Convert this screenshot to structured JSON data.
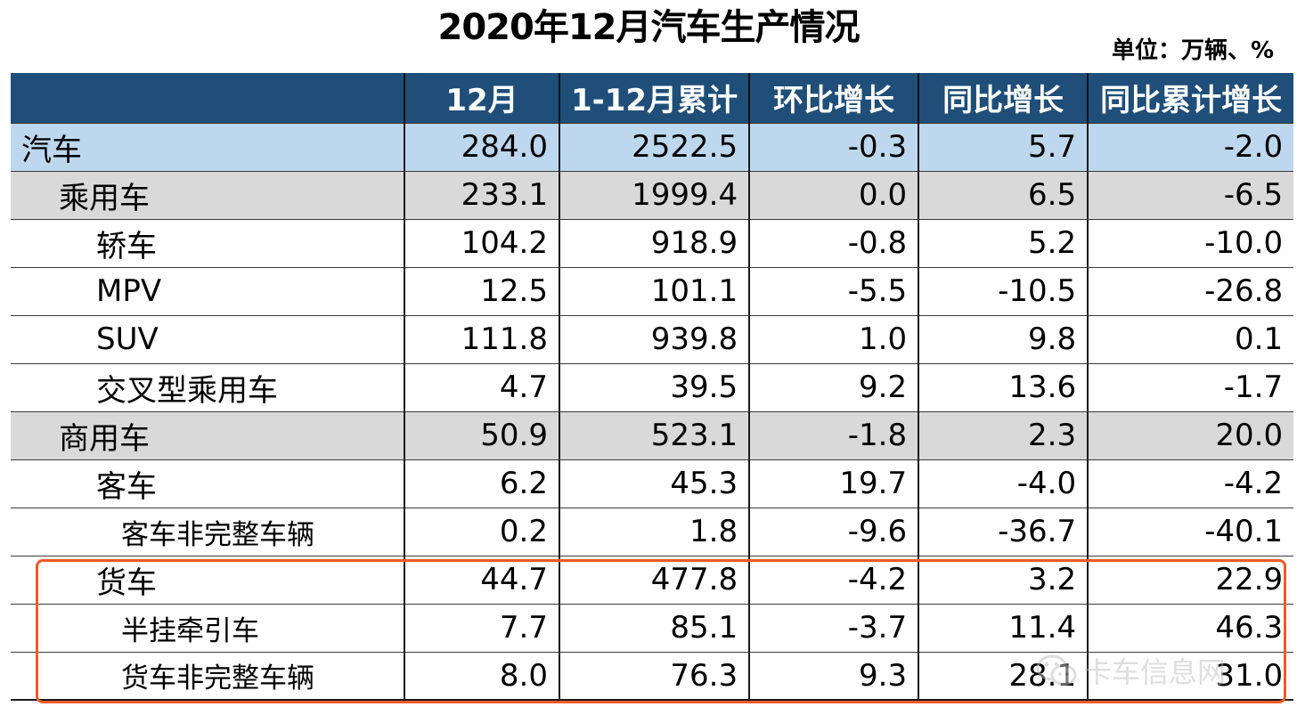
{
  "title": "2020年12月汽车生产情况",
  "unit_label": "单位：万辆、%",
  "watermark": {
    "text": "卡车信息网",
    "icon": "wechat-icon"
  },
  "colors": {
    "header_bg": "#1f4e79",
    "total_row_bg": "#bdd7ee",
    "subtotal_row_bg": "#d9d9d9",
    "highlight_border": "#ee5a29"
  },
  "chart_data": {
    "type": "table",
    "columns": [
      "",
      "12月",
      "1-12月累计",
      "环比增长",
      "同比增长",
      "同比累计增长"
    ],
    "rows": [
      {
        "label": "汽车",
        "level": 0,
        "values": [
          "284.0",
          "2522.5",
          "-0.3",
          "5.7",
          "-2.0"
        ]
      },
      {
        "label": "乘用车",
        "level": 1,
        "values": [
          "233.1",
          "1999.4",
          "0.0",
          "6.5",
          "-6.5"
        ]
      },
      {
        "label": "轿车",
        "level": 2,
        "values": [
          "104.2",
          "918.9",
          "-0.8",
          "5.2",
          "-10.0"
        ]
      },
      {
        "label": "MPV",
        "level": 2,
        "values": [
          "12.5",
          "101.1",
          "-5.5",
          "-10.5",
          "-26.8"
        ]
      },
      {
        "label": "SUV",
        "level": 2,
        "values": [
          "111.8",
          "939.8",
          "1.0",
          "9.8",
          "0.1"
        ]
      },
      {
        "label": "交叉型乘用车",
        "level": 2,
        "values": [
          "4.7",
          "39.5",
          "9.2",
          "13.6",
          "-1.7"
        ]
      },
      {
        "label": "商用车",
        "level": 1,
        "values": [
          "50.9",
          "523.1",
          "-1.8",
          "2.3",
          "20.0"
        ]
      },
      {
        "label": "客车",
        "level": 2,
        "values": [
          "6.2",
          "45.3",
          "19.7",
          "-4.0",
          "-4.2"
        ]
      },
      {
        "label": "客车非完整车辆",
        "level": 3,
        "values": [
          "0.2",
          "1.8",
          "-9.6",
          "-36.7",
          "-40.1"
        ]
      },
      {
        "label": "货车",
        "level": 2,
        "values": [
          "44.7",
          "477.8",
          "-4.2",
          "3.2",
          "22.9"
        ]
      },
      {
        "label": "半挂牵引车",
        "level": 3,
        "values": [
          "7.7",
          "85.1",
          "-3.7",
          "11.4",
          "46.3"
        ]
      },
      {
        "label": "货车非完整车辆",
        "level": 3,
        "values": [
          "8.0",
          "76.3",
          "9.3",
          "28.1",
          "31.0"
        ]
      }
    ],
    "highlighted_rows": [
      "货车",
      "半挂牵引车",
      "货车非完整车辆"
    ]
  }
}
